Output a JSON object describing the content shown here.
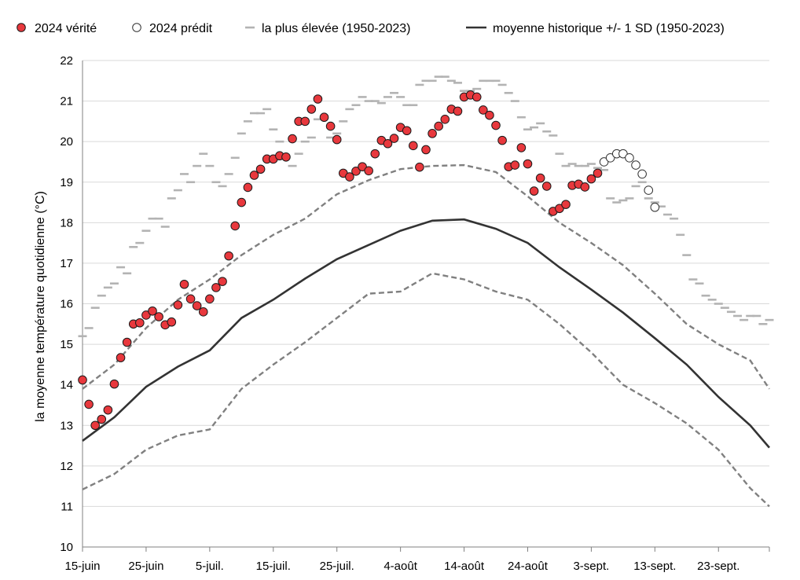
{
  "chart_data": {
    "type": "scatter",
    "ylabel": "la moyenne température quotidienne (°C)",
    "xlabel": "",
    "ylim": [
      10,
      22
    ],
    "yticks": [
      10,
      11,
      12,
      13,
      14,
      15,
      16,
      17,
      18,
      19,
      20,
      21,
      22
    ],
    "x_start": "15-juin",
    "x_end": "30-sept.",
    "xticks": [
      {
        "day": 0,
        "label": "15-juin"
      },
      {
        "day": 10,
        "label": "25-juin"
      },
      {
        "day": 20,
        "label": "5-juil."
      },
      {
        "day": 30,
        "label": "15-juil."
      },
      {
        "day": 40,
        "label": "25-juil."
      },
      {
        "day": 50,
        "label": "4-août"
      },
      {
        "day": 60,
        "label": "14-août"
      },
      {
        "day": 70,
        "label": "24-août"
      },
      {
        "day": 80,
        "label": "3-sept."
      },
      {
        "day": 90,
        "label": "13-sept."
      },
      {
        "day": 100,
        "label": "23-sept."
      }
    ],
    "grid": true,
    "legend_position": "top",
    "colors": {
      "truth": "#e8383d",
      "predicted": "#ffffff",
      "highest": "#b3b3b3",
      "mean": "#333333",
      "sd": "#808080"
    },
    "series": [
      {
        "name": "2024 vérité",
        "style": "filled-circle",
        "x": [
          0,
          1,
          2,
          3,
          4,
          5,
          6,
          7,
          8,
          9,
          10,
          11,
          12,
          13,
          14,
          15,
          16,
          17,
          18,
          19,
          20,
          21,
          22,
          23,
          24,
          25,
          26,
          27,
          28,
          29,
          30,
          31,
          32,
          33,
          34,
          35,
          36,
          37,
          38,
          39,
          40,
          41,
          42,
          43,
          44,
          45,
          46,
          47,
          48,
          49,
          50,
          51,
          52,
          53,
          54,
          55,
          56,
          57,
          58,
          59,
          60,
          61,
          62,
          63,
          64,
          65,
          66,
          67,
          68,
          69,
          70,
          71,
          72,
          73,
          74,
          75,
          76,
          77,
          78,
          79,
          80,
          81
        ],
        "values": [
          14.12,
          13.52,
          13.0,
          13.15,
          13.38,
          14.02,
          14.67,
          15.05,
          15.5,
          15.53,
          15.72,
          15.82,
          15.68,
          15.48,
          15.55,
          15.97,
          16.48,
          16.12,
          15.95,
          15.8,
          16.12,
          16.4,
          16.55,
          17.18,
          17.92,
          18.5,
          18.87,
          19.17,
          19.32,
          19.57,
          19.57,
          19.65,
          19.62,
          20.07,
          20.5,
          20.5,
          20.8,
          21.05,
          20.6,
          20.38,
          20.05,
          19.22,
          19.13,
          19.27,
          19.38,
          19.28,
          19.7,
          20.03,
          19.95,
          20.08,
          20.35,
          20.27,
          19.9,
          19.37,
          19.8,
          20.2,
          20.38,
          20.55,
          20.8,
          20.75,
          21.1,
          21.15,
          21.1,
          20.78,
          20.65,
          20.4,
          20.03,
          19.38,
          19.42,
          19.85,
          19.45,
          18.78,
          19.1,
          18.9,
          18.28,
          18.35,
          18.45,
          18.92,
          18.95,
          18.88,
          19.08,
          19.22
        ]
      },
      {
        "name": "2024 prédit",
        "style": "open-circle",
        "x": [
          82,
          83,
          84,
          85,
          86,
          87,
          88,
          89,
          90
        ],
        "values": [
          19.5,
          19.6,
          19.7,
          19.7,
          19.6,
          19.42,
          19.2,
          18.8,
          18.38
        ]
      },
      {
        "name": "la plus élevée (1950-2023)",
        "style": "dash-marker",
        "x": [
          0,
          1,
          2,
          3,
          4,
          5,
          6,
          7,
          8,
          9,
          10,
          11,
          12,
          13,
          14,
          15,
          16,
          17,
          18,
          19,
          20,
          21,
          22,
          23,
          24,
          25,
          26,
          27,
          28,
          29,
          30,
          31,
          32,
          33,
          34,
          35,
          36,
          37,
          38,
          39,
          40,
          41,
          42,
          43,
          44,
          45,
          46,
          47,
          48,
          49,
          50,
          51,
          52,
          53,
          54,
          55,
          56,
          57,
          58,
          59,
          60,
          61,
          62,
          63,
          64,
          65,
          66,
          67,
          68,
          69,
          70,
          71,
          72,
          73,
          74,
          75,
          76,
          77,
          78,
          79,
          80,
          81,
          82,
          83,
          84,
          85,
          86,
          87,
          88,
          89,
          90,
          91,
          92,
          93,
          94,
          95,
          96,
          97,
          98,
          99,
          100,
          101,
          102,
          103,
          104,
          105,
          106,
          107,
          108
        ],
        "values": [
          15.2,
          15.4,
          15.9,
          16.2,
          16.4,
          16.5,
          16.9,
          16.75,
          17.4,
          17.5,
          17.8,
          18.1,
          18.1,
          17.9,
          18.6,
          18.8,
          19.2,
          19.0,
          19.4,
          19.7,
          19.4,
          19.0,
          18.9,
          19.2,
          19.6,
          20.2,
          20.5,
          20.7,
          20.7,
          20.8,
          20.3,
          20.0,
          19.6,
          19.4,
          19.7,
          20.0,
          20.1,
          20.55,
          20.6,
          20.1,
          20.2,
          20.5,
          20.8,
          20.9,
          21.1,
          21.0,
          21.0,
          20.95,
          21.1,
          21.2,
          21.1,
          20.9,
          20.9,
          21.4,
          21.5,
          21.5,
          21.6,
          21.6,
          21.5,
          21.45,
          21.25,
          21.25,
          21.3,
          21.5,
          21.5,
          21.5,
          21.4,
          21.2,
          21.0,
          20.6,
          20.3,
          20.35,
          20.45,
          20.25,
          20.15,
          19.7,
          19.4,
          19.45,
          19.4,
          19.4,
          19.45,
          19.35,
          19.3,
          18.6,
          18.5,
          18.55,
          18.6,
          18.9,
          19.0,
          18.6,
          18.5,
          18.4,
          18.2,
          18.1,
          17.7,
          17.2,
          16.6,
          16.5,
          16.2,
          16.1,
          16.0,
          15.9,
          15.8,
          15.7,
          15.6,
          15.7,
          15.7,
          15.5,
          15.6
        ]
      },
      {
        "name": "moyenne historique +/- 1 SD (1950-2023)",
        "style": "line",
        "x": [
          0,
          5,
          10,
          15,
          20,
          25,
          30,
          35,
          40,
          45,
          50,
          55,
          60,
          65,
          70,
          75,
          80,
          85,
          90,
          95,
          100,
          105,
          108
        ],
        "values": [
          12.62,
          13.2,
          13.95,
          14.45,
          14.85,
          15.65,
          16.1,
          16.62,
          17.1,
          17.45,
          17.8,
          18.05,
          18.08,
          17.85,
          17.5,
          16.9,
          16.35,
          15.78,
          15.15,
          14.5,
          13.7,
          13.0,
          12.45
        ]
      },
      {
        "name": "moyenne + 1 SD",
        "style": "dashed-line",
        "x": [
          0,
          5,
          10,
          15,
          20,
          25,
          30,
          35,
          40,
          45,
          50,
          55,
          60,
          65,
          70,
          75,
          80,
          85,
          90,
          95,
          100,
          105,
          108
        ],
        "values": [
          13.9,
          14.5,
          15.4,
          16.1,
          16.6,
          17.2,
          17.7,
          18.1,
          18.7,
          19.05,
          19.32,
          19.4,
          19.42,
          19.25,
          18.65,
          18.0,
          17.5,
          16.95,
          16.25,
          15.5,
          15.0,
          14.6,
          13.9
        ]
      },
      {
        "name": "moyenne - 1 SD",
        "style": "dashed-line",
        "x": [
          0,
          5,
          10,
          15,
          20,
          25,
          30,
          35,
          40,
          45,
          50,
          55,
          60,
          65,
          70,
          75,
          80,
          85,
          90,
          95,
          100,
          105,
          108
        ],
        "values": [
          11.42,
          11.8,
          12.4,
          12.75,
          12.9,
          13.9,
          14.5,
          15.05,
          15.65,
          16.25,
          16.3,
          16.75,
          16.6,
          16.3,
          16.1,
          15.5,
          14.8,
          14.0,
          13.55,
          13.05,
          12.4,
          11.45,
          11.0
        ]
      }
    ]
  }
}
